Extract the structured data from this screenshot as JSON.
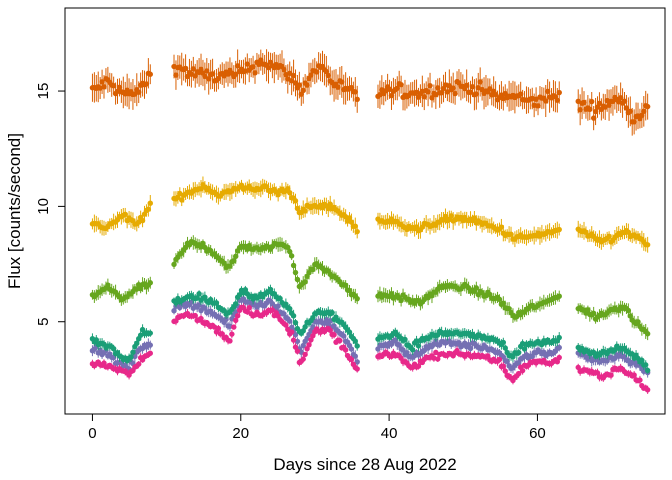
{
  "chart_data": {
    "type": "scatter",
    "title": "",
    "xlabel": "Days since 28 Aug 2022",
    "ylabel": "Flux [counts/second]",
    "xlim": [
      -3.7,
      77.2
    ],
    "ylim": [
      1.0,
      18.6
    ],
    "x_ticks": [
      0,
      20,
      40,
      60
    ],
    "y_ticks": [
      5,
      10,
      15
    ],
    "grid": false,
    "legend": "none",
    "error_bars": true,
    "day_segments": [
      [
        0,
        8
      ],
      [
        11,
        35.8
      ],
      [
        38.5,
        63
      ],
      [
        65.5,
        75
      ]
    ],
    "series": [
      {
        "color": "#d95f02",
        "anchors_x": [
          0,
          2,
          4,
          6,
          8,
          11,
          13,
          15,
          17,
          20,
          23,
          25,
          27,
          28,
          30,
          31,
          32,
          34,
          35.8,
          38.5,
          41,
          44,
          47,
          50,
          53,
          55,
          57,
          59,
          61,
          63,
          65.5,
          68,
          70,
          72,
          73,
          75
        ],
        "anchors_y": [
          15.0,
          15.4,
          14.9,
          14.9,
          15.8,
          16.1,
          15.8,
          15.7,
          15.6,
          15.8,
          16.3,
          16.0,
          15.6,
          15.0,
          15.9,
          16.1,
          15.5,
          15.1,
          14.7,
          14.9,
          15.0,
          14.9,
          15.1,
          15.2,
          15.0,
          14.7,
          14.8,
          14.5,
          14.7,
          14.8,
          14.4,
          14.2,
          14.6,
          14.5,
          13.8,
          14.4
        ],
        "noise": 0.45,
        "err": 0.55
      },
      {
        "color": "#e6ab02",
        "anchors_x": [
          0,
          2,
          4,
          6,
          8,
          11,
          13,
          15,
          17,
          20,
          23,
          25,
          26.5,
          28,
          30,
          32,
          34,
          35.8,
          38.5,
          41,
          44,
          47,
          50,
          53,
          55,
          57,
          59,
          61,
          63,
          65.5,
          68,
          70,
          72,
          73,
          75
        ],
        "anchors_y": [
          9.2,
          9.1,
          9.6,
          9.2,
          10.1,
          10.3,
          10.6,
          10.9,
          10.5,
          10.8,
          10.8,
          10.6,
          10.7,
          9.8,
          10.0,
          10.0,
          9.6,
          9.0,
          9.4,
          9.3,
          9.0,
          9.4,
          9.5,
          9.2,
          9.0,
          8.6,
          8.7,
          8.8,
          9.0,
          9.0,
          8.5,
          8.6,
          8.9,
          8.7,
          8.3,
          8.0
        ],
        "noise": 0.22,
        "err": 0.3
      },
      {
        "color": "#66a61e",
        "anchors_x": [
          0,
          2,
          4,
          6,
          8,
          11,
          13,
          15,
          17,
          18.5,
          20,
          23,
          25,
          26.5,
          28,
          30,
          32,
          34,
          35.8,
          38.5,
          41,
          44,
          47,
          50,
          53,
          55,
          57,
          59,
          61,
          63,
          65.5,
          68,
          70,
          72,
          73,
          75
        ],
        "anchors_y": [
          6.1,
          6.5,
          6.0,
          6.4,
          6.7,
          7.5,
          8.4,
          8.3,
          7.8,
          7.3,
          8.3,
          8.1,
          8.4,
          8.2,
          6.5,
          7.5,
          7.1,
          6.6,
          5.9,
          6.2,
          6.1,
          5.8,
          6.5,
          6.5,
          6.2,
          5.9,
          5.2,
          5.6,
          5.8,
          6.2,
          5.6,
          5.2,
          5.5,
          5.7,
          5.0,
          4.6
        ],
        "noise": 0.2,
        "err": 0.25
      },
      {
        "color": "#7570b3",
        "anchors_x": [
          0,
          2,
          3.5,
          5,
          6.5,
          8,
          11,
          13,
          15,
          17,
          18.5,
          20,
          22,
          24,
          25,
          27,
          28,
          30,
          32,
          34,
          35.8,
          38.5,
          41,
          43,
          45,
          47,
          50,
          53,
          55,
          56.5,
          58,
          60,
          62,
          63,
          65.5,
          67.5,
          69,
          71,
          73,
          75
        ],
        "anchors_y": [
          3.8,
          3.6,
          3.2,
          3.0,
          3.9,
          4.1,
          5.5,
          5.8,
          5.6,
          5.2,
          4.8,
          6.0,
          5.7,
          5.9,
          5.6,
          4.8,
          3.7,
          5.0,
          5.0,
          4.3,
          3.2,
          3.9,
          4.1,
          3.4,
          3.9,
          4.1,
          4.0,
          3.9,
          3.6,
          2.9,
          3.4,
          3.7,
          3.6,
          3.9,
          3.6,
          3.4,
          3.3,
          3.6,
          3.2,
          2.8
        ],
        "noise": 0.2,
        "err": 0.2
      },
      {
        "color": "#e7298a",
        "anchors_x": [
          0,
          2,
          3.5,
          5,
          6.5,
          8,
          11,
          13,
          15,
          17,
          18.5,
          20,
          22,
          24,
          25,
          27,
          28,
          30,
          32,
          34,
          35.8,
          38.5,
          41,
          43,
          45,
          47,
          50,
          53,
          55,
          56.5,
          58,
          60,
          62,
          63,
          65.5,
          67.5,
          69,
          71,
          73,
          75
        ],
        "anchors_y": [
          3.2,
          3.1,
          2.9,
          2.7,
          3.4,
          3.6,
          5.1,
          5.3,
          5.0,
          4.6,
          4.2,
          5.7,
          5.3,
          5.5,
          5.2,
          4.4,
          3.2,
          4.6,
          4.6,
          3.8,
          2.8,
          3.5,
          3.6,
          3.0,
          3.4,
          3.6,
          3.6,
          3.5,
          3.2,
          2.4,
          3.0,
          3.3,
          3.2,
          3.5,
          3.0,
          2.8,
          2.6,
          3.0,
          2.6,
          2.0
        ],
        "noise": 0.2,
        "err": 0.15
      },
      {
        "color": "#1b9e77",
        "anchors_x": [
          0,
          2,
          3.5,
          5,
          6.5,
          8,
          11,
          13,
          15,
          17,
          18.5,
          20,
          22,
          24,
          25,
          27,
          28,
          30,
          32,
          34,
          35.8,
          38.5,
          41,
          43,
          45,
          47,
          50,
          53,
          55,
          56.5,
          58,
          60,
          62,
          63,
          65.5,
          67.5,
          69,
          71,
          73,
          75
        ],
        "anchors_y": [
          4.2,
          4.0,
          3.6,
          3.4,
          4.5,
          4.6,
          5.8,
          6.1,
          6.0,
          5.7,
          5.3,
          6.4,
          6.0,
          6.4,
          6.1,
          5.3,
          4.4,
          5.4,
          5.4,
          4.8,
          4.0,
          4.3,
          4.5,
          3.9,
          4.3,
          4.5,
          4.5,
          4.3,
          4.1,
          3.4,
          3.9,
          4.1,
          4.1,
          4.3,
          3.8,
          3.6,
          3.6,
          3.9,
          3.5,
          3.0
        ],
        "noise": 0.2,
        "err": 0.2
      }
    ]
  }
}
